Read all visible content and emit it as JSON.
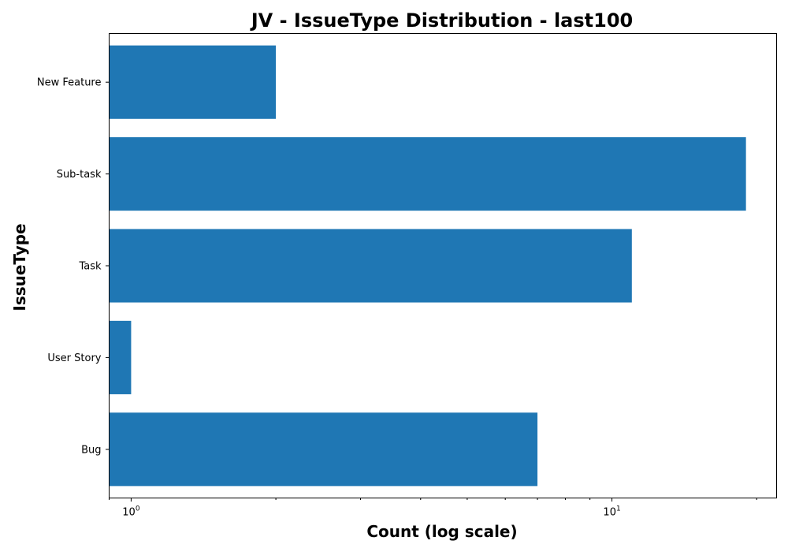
{
  "chart_data": {
    "type": "bar",
    "orientation": "horizontal",
    "title": "JV - IssueType Distribution - last100",
    "xlabel": "Count (log scale)",
    "ylabel": "IssueType",
    "x_scale": "log",
    "xlim": [
      0.9,
      22
    ],
    "x_major_ticks": [
      {
        "value": 1,
        "base": "10",
        "exp": "0"
      },
      {
        "value": 10,
        "base": "10",
        "exp": "1"
      }
    ],
    "categories": [
      "Bug",
      "User Story",
      "Task",
      "Sub-task",
      "New Feature"
    ],
    "values": [
      7,
      1,
      11,
      19,
      2
    ],
    "bar_color": "#1f77b4",
    "grid": false,
    "legend": "none"
  }
}
